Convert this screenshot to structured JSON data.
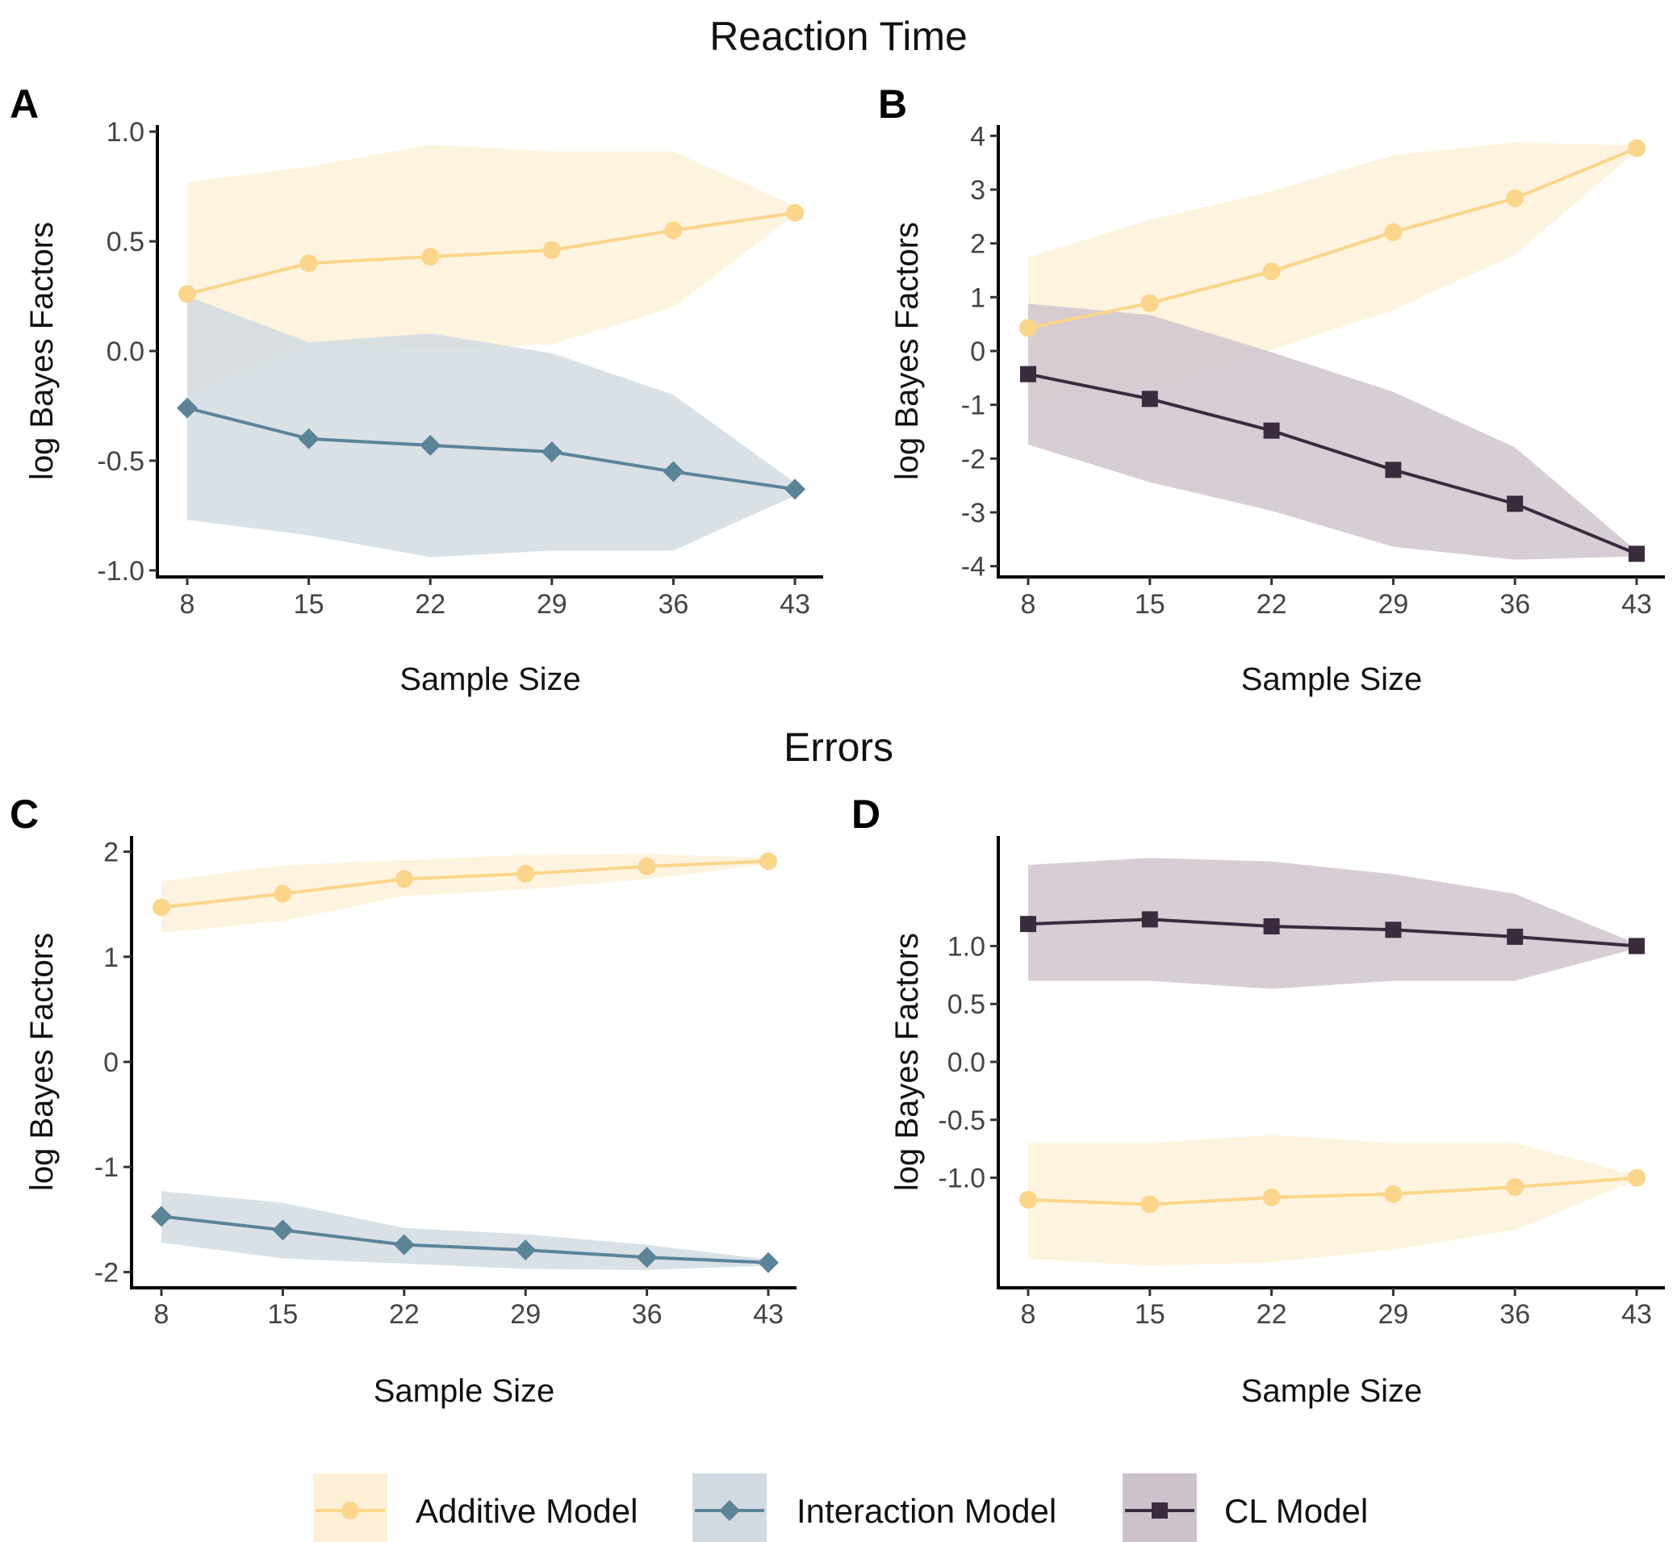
{
  "section_titles": {
    "top": "Reaction Time",
    "bottom": "Errors"
  },
  "legend": {
    "items": [
      {
        "label": "Additive Model",
        "marker": "circle",
        "color": "#FBD58A",
        "band_color": "#FEF0D6"
      },
      {
        "label": "Interaction Model",
        "marker": "diamond",
        "color": "#5C8498",
        "band_color": "#D0DAE0"
      },
      {
        "label": "CL Model",
        "marker": "square",
        "color": "#3A2B3F",
        "band_color": "#CDC2CB"
      }
    ]
  },
  "chart_data": [
    {
      "panel": "A",
      "type": "line",
      "xlabel": "Sample Size",
      "ylabel": "log Bayes Factors",
      "x": [
        8,
        15,
        22,
        29,
        36,
        43
      ],
      "ylim": [
        -1.03,
        1.03
      ],
      "yticks": [
        -1.0,
        -0.5,
        0.0,
        0.5,
        1.0
      ],
      "ytick_labels": [
        "-1.0",
        "-0.5",
        "0.0",
        "0.5",
        "1.0"
      ],
      "series": [
        {
          "name": "Additive Model",
          "marker": "circle",
          "values": [
            0.26,
            0.4,
            0.43,
            0.46,
            0.55,
            0.63
          ],
          "band_upper": [
            0.77,
            0.84,
            0.94,
            0.91,
            0.91,
            0.66
          ],
          "band_lower": [
            -0.21,
            0.04,
            0.01,
            0.03,
            0.2,
            0.62
          ]
        },
        {
          "name": "Interaction Model",
          "marker": "diamond",
          "values": [
            -0.26,
            -0.4,
            -0.43,
            -0.46,
            -0.55,
            -0.63
          ],
          "band_upper": [
            0.25,
            0.04,
            0.08,
            -0.01,
            -0.2,
            -0.6
          ],
          "band_lower": [
            -0.77,
            -0.84,
            -0.94,
            -0.91,
            -0.91,
            -0.66
          ]
        }
      ]
    },
    {
      "panel": "B",
      "type": "line",
      "xlabel": "Sample Size",
      "ylabel": "log Bayes Factors",
      "x": [
        8,
        15,
        22,
        29,
        36,
        43
      ],
      "ylim": [
        -4.2,
        4.2
      ],
      "yticks": [
        -4,
        -3,
        -2,
        -1,
        0,
        1,
        2,
        3,
        4
      ],
      "ytick_labels": [
        "-4",
        "-3",
        "-2",
        "-1",
        "0",
        "1",
        "2",
        "3",
        "4"
      ],
      "series": [
        {
          "name": "Additive Model",
          "marker": "circle",
          "values": [
            0.43,
            0.89,
            1.48,
            2.21,
            2.84,
            3.77
          ],
          "band_upper": [
            1.74,
            2.44,
            2.97,
            3.64,
            3.88,
            3.82
          ],
          "band_lower": [
            -0.88,
            -0.67,
            0.02,
            0.76,
            1.79,
            3.72
          ]
        },
        {
          "name": "CL Model",
          "marker": "square",
          "values": [
            -0.43,
            -0.89,
            -1.48,
            -2.21,
            -2.84,
            -3.77
          ],
          "band_upper": [
            0.88,
            0.67,
            -0.02,
            -0.76,
            -1.79,
            -3.72
          ],
          "band_lower": [
            -1.74,
            -2.44,
            -2.97,
            -3.64,
            -3.88,
            -3.82
          ]
        }
      ]
    },
    {
      "panel": "C",
      "type": "line",
      "xlabel": "Sample Size",
      "ylabel": "log Bayes Factors",
      "x": [
        8,
        15,
        22,
        29,
        36,
        43
      ],
      "ylim": [
        -2.15,
        2.15
      ],
      "yticks": [
        -2,
        -1,
        0,
        1,
        2
      ],
      "ytick_labels": [
        "-2",
        "-1",
        "0",
        "1",
        "2"
      ],
      "series": [
        {
          "name": "Additive Model",
          "marker": "circle",
          "values": [
            1.47,
            1.6,
            1.74,
            1.79,
            1.86,
            1.91
          ],
          "band_upper": [
            1.72,
            1.87,
            1.92,
            1.97,
            1.98,
            1.94
          ],
          "band_lower": [
            1.23,
            1.34,
            1.58,
            1.64,
            1.74,
            1.88
          ]
        },
        {
          "name": "Interaction Model",
          "marker": "diamond",
          "values": [
            -1.47,
            -1.6,
            -1.74,
            -1.79,
            -1.86,
            -1.91
          ],
          "band_upper": [
            -1.23,
            -1.34,
            -1.58,
            -1.64,
            -1.74,
            -1.88
          ],
          "band_lower": [
            -1.72,
            -1.87,
            -1.92,
            -1.97,
            -1.98,
            -1.94
          ]
        }
      ]
    },
    {
      "panel": "D",
      "type": "line",
      "xlabel": "Sample Size",
      "ylabel": "log Bayes Factors",
      "x": [
        8,
        15,
        22,
        29,
        36,
        43
      ],
      "ylim": [
        -1.95,
        1.95
      ],
      "yticks": [
        -1.0,
        -0.5,
        0.0,
        0.5,
        1.0
      ],
      "ytick_labels": [
        "-1.0",
        "-0.5",
        "0.0",
        "0.5",
        "1.0"
      ],
      "series": [
        {
          "name": "CL Model",
          "marker": "square",
          "values": [
            1.19,
            1.23,
            1.17,
            1.14,
            1.08,
            1.0
          ],
          "band_upper": [
            1.7,
            1.76,
            1.73,
            1.62,
            1.45,
            1.02
          ],
          "band_lower": [
            0.7,
            0.7,
            0.63,
            0.7,
            0.7,
            0.98
          ]
        },
        {
          "name": "Additive Model",
          "marker": "circle",
          "values": [
            -1.19,
            -1.23,
            -1.17,
            -1.14,
            -1.08,
            -1.0
          ],
          "band_upper": [
            -0.7,
            -0.7,
            -0.63,
            -0.7,
            -0.7,
            -0.98
          ],
          "band_lower": [
            -1.7,
            -1.76,
            -1.73,
            -1.62,
            -1.45,
            -1.02
          ]
        }
      ]
    }
  ]
}
